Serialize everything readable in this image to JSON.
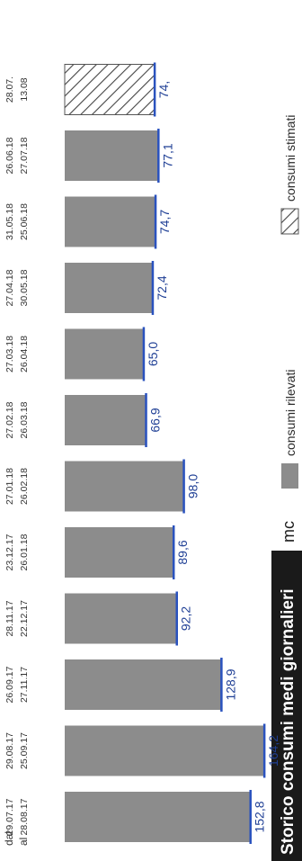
{
  "chart_data": {
    "type": "bar",
    "title": "Storico consumi medi giornalieri",
    "unit": "mc",
    "legend": {
      "measured": "consumi rilevati",
      "estimated": "consumi stimati"
    },
    "row_labels": {
      "from": "dal",
      "to": "al"
    },
    "colors": {
      "bar": "#8c8c8c",
      "value_line": "#2a52be",
      "value_text": "#1f3f95"
    },
    "ylim": [
      0,
      170
    ],
    "grid": false,
    "bars": [
      {
        "value": 152.8,
        "label": "152,8",
        "from": "29.07.17",
        "to": "28.08.17",
        "estimated": false
      },
      {
        "value": 164.2,
        "label": "164,2",
        "from": "29.08.17",
        "to": "25.09.17",
        "estimated": false
      },
      {
        "value": 128.9,
        "label": "128,9",
        "from": "26.09.17",
        "to": "27.11.17",
        "estimated": false
      },
      {
        "value": 92.2,
        "label": "92,2",
        "from": "28.11.17",
        "to": "22.12.17",
        "estimated": false
      },
      {
        "value": 89.6,
        "label": "89,6",
        "from": "23.12.17",
        "to": "26.01.18",
        "estimated": false
      },
      {
        "value": 98.0,
        "label": "98,0",
        "from": "27.01.18",
        "to": "26.02.18",
        "estimated": false
      },
      {
        "value": 66.9,
        "label": "66,9",
        "from": "27.02.18",
        "to": "26.03.18",
        "estimated": false
      },
      {
        "value": 65.0,
        "label": "65,0",
        "from": "27.03.18",
        "to": "26.04.18",
        "estimated": false
      },
      {
        "value": 72.4,
        "label": "72,4",
        "from": "27.04.18",
        "to": "30.05.18",
        "estimated": false
      },
      {
        "value": 74.7,
        "label": "74,7",
        "from": "31.05.18",
        "to": "25.06.18",
        "estimated": false
      },
      {
        "value": 77.1,
        "label": "77,1",
        "from": "26.06.18",
        "to": "27.07.18",
        "estimated": false
      },
      {
        "value": 74.0,
        "label": "74,",
        "from": "28.07.",
        "to": "13.08",
        "estimated": true
      }
    ]
  }
}
